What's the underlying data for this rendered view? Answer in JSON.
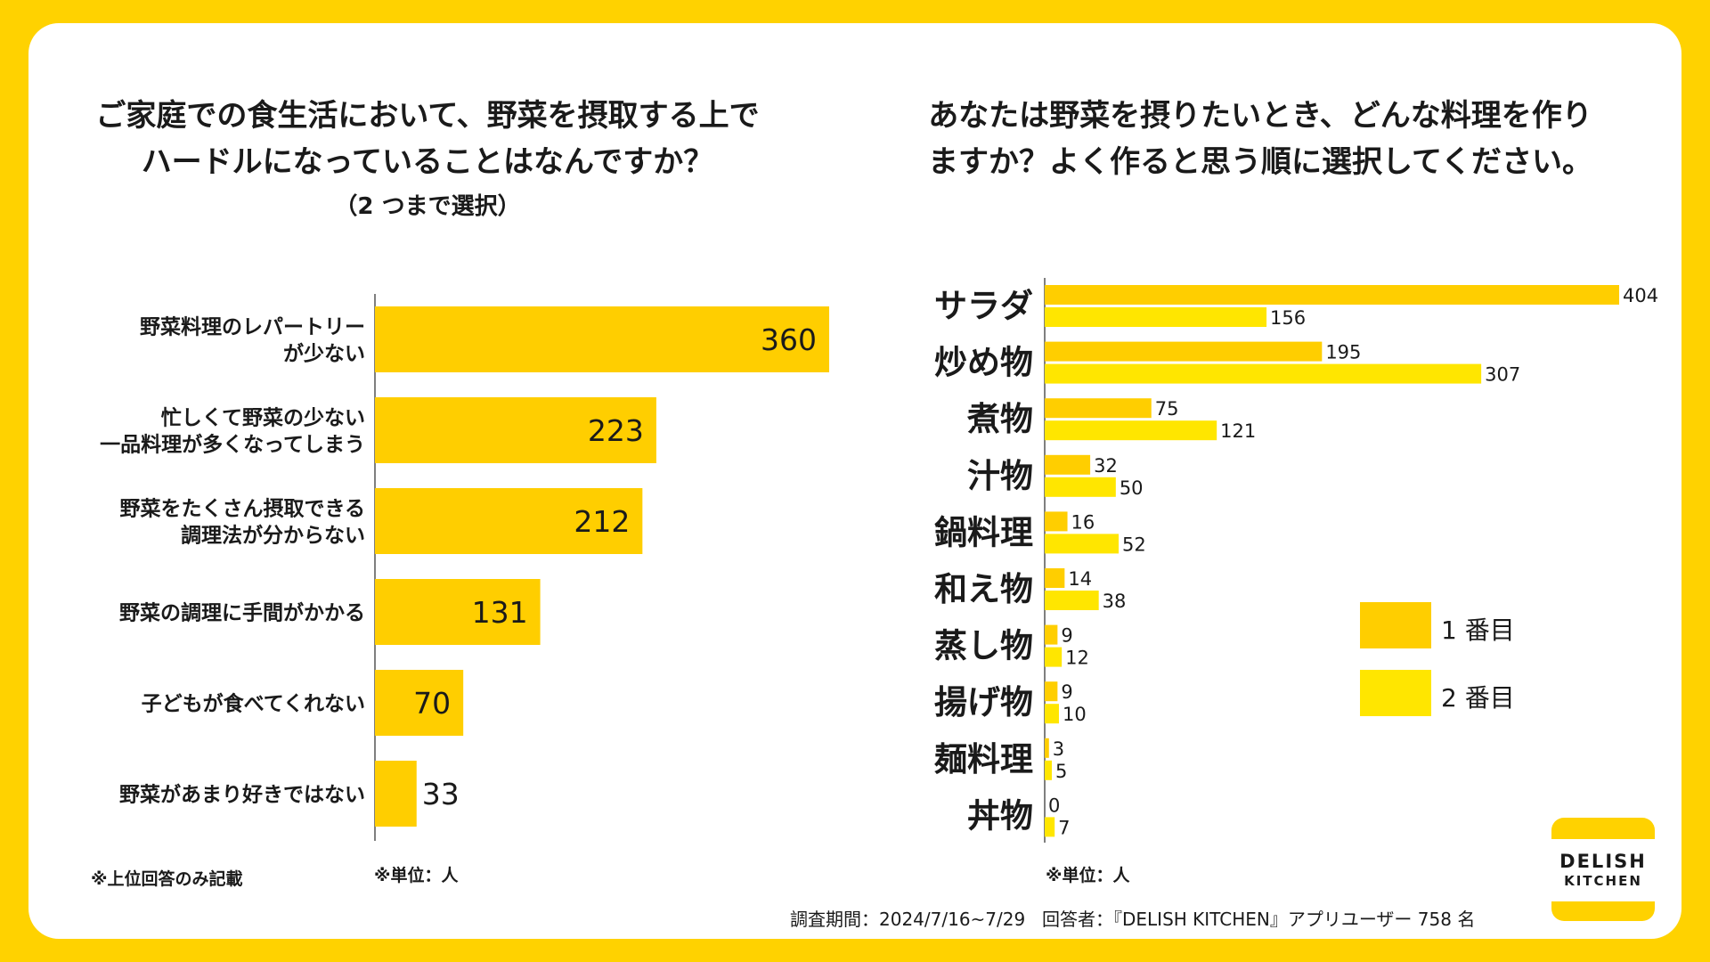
{
  "colors": {
    "frame": "#FFD200",
    "first": "#FFCE00",
    "second": "#FFE600",
    "axis": "#555555"
  },
  "left": {
    "title_line1": "ご家庭での食生活において、野菜を摂取する上で",
    "title_line2": "ハードルになっていることはなんですか？",
    "subtitle": "（2 つまで選択）",
    "note": "※上位回答のみ記載",
    "unit": "※単位：人"
  },
  "right": {
    "title_line1": "あなたは野菜を摂りたいとき、どんな料理を作り",
    "title_line2": "ますか？よく作ると思う順に選択してください。",
    "unit": "※単位：人",
    "legend": {
      "first": "1 番目",
      "second": "2 番目"
    }
  },
  "chart_data": [
    {
      "type": "bar",
      "orientation": "horizontal",
      "title": "ご家庭での食生活において、野菜を摂取する上でハードルになっていることはなんですか？（2 つまで選択）",
      "categories": [
        [
          "野菜料理のレパートリー",
          "が少ない"
        ],
        [
          "忙しくて野菜の少ない",
          "一品料理が多くなってしまう"
        ],
        [
          "野菜をたくさん摂取できる",
          "調理法が分からない"
        ],
        [
          "野菜の調理に手間がかかる"
        ],
        [
          "子どもが食べてくれない"
        ],
        [
          "野菜があまり好きではない"
        ]
      ],
      "values": [
        360,
        223,
        212,
        131,
        70,
        33
      ],
      "xlim": [
        0,
        360
      ],
      "unit": "人"
    },
    {
      "type": "bar",
      "orientation": "horizontal",
      "title": "あなたは野菜を摂りたいとき、どんな料理を作りますか？よく作ると思う順に選択してください。",
      "categories": [
        "サラダ",
        "炒め物",
        "煮物",
        "汁物",
        "鍋料理",
        "和え物",
        "蒸し物",
        "揚げ物",
        "麺料理",
        "丼物"
      ],
      "series": [
        {
          "name": "1 番目",
          "values": [
            404,
            195,
            75,
            32,
            16,
            14,
            9,
            9,
            3,
            0
          ]
        },
        {
          "name": "2 番目",
          "values": [
            156,
            307,
            121,
            50,
            52,
            38,
            12,
            10,
            5,
            7
          ]
        }
      ],
      "xlim": [
        0,
        404
      ],
      "legend_position": "right",
      "unit": "人"
    }
  ],
  "logo": {
    "line1": "DELISH",
    "line2": "KITCHEN"
  },
  "footer": {
    "period": "調査期間：2024/7/16~7/29",
    "respondents": "回答者：『DELISH KITCHEN』アプリユーザー 758 名"
  }
}
